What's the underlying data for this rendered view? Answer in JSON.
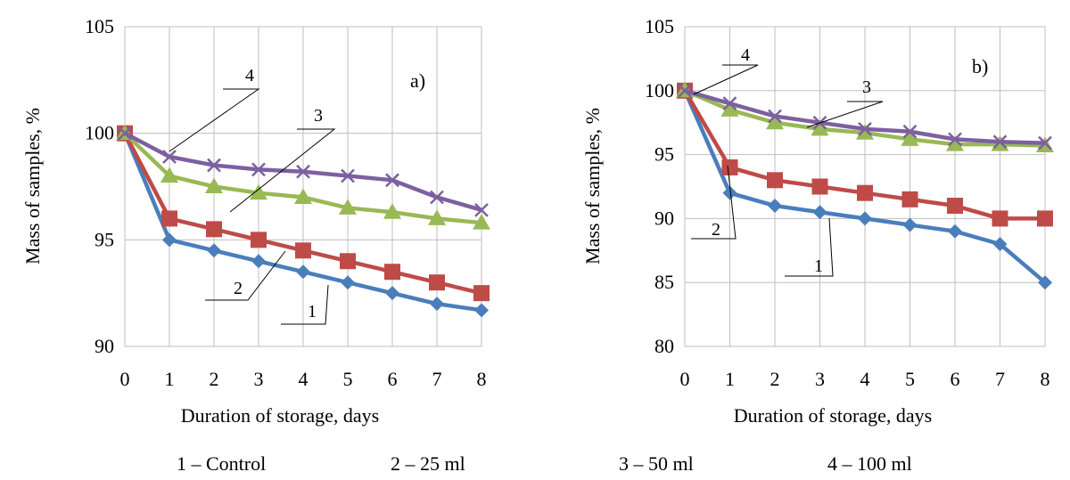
{
  "chart_data": [
    {
      "type": "line",
      "panel_label": "a)",
      "xlabel": "Duration of storage, days",
      "ylabel": "Mass of samples, %",
      "x": [
        0,
        1,
        2,
        3,
        4,
        5,
        6,
        7,
        8
      ],
      "x_ticks": [
        "0",
        "1",
        "2",
        "3",
        "4",
        "5",
        "6",
        "7",
        "8"
      ],
      "ylim": [
        90,
        105
      ],
      "y_ticks": [
        "90",
        "95",
        "100",
        "105"
      ],
      "grid": true,
      "series": [
        {
          "name": "1",
          "label": "1",
          "color": "#4a7ebb",
          "marker": "diamond",
          "values": [
            100,
            95.0,
            94.5,
            94.0,
            93.5,
            93.0,
            92.5,
            92.0,
            91.7
          ]
        },
        {
          "name": "2",
          "label": "2",
          "color": "#be4b48",
          "marker": "square",
          "values": [
            100,
            96.0,
            95.5,
            95.0,
            94.5,
            94.0,
            93.5,
            93.0,
            92.5
          ]
        },
        {
          "name": "3",
          "label": "3",
          "color": "#98b954",
          "marker": "triangle",
          "values": [
            100,
            98.0,
            97.5,
            97.2,
            97.0,
            96.5,
            96.3,
            96.0,
            95.8
          ]
        },
        {
          "name": "4",
          "label": "4",
          "color": "#7d60a0",
          "marker": "x",
          "values": [
            100,
            98.9,
            98.5,
            98.3,
            98.2,
            98.0,
            97.8,
            97.0,
            96.4
          ]
        }
      ]
    },
    {
      "type": "line",
      "panel_label": "b)",
      "xlabel": "Duration of storage, days",
      "ylabel": "Mass of samples, %",
      "x": [
        0,
        1,
        2,
        3,
        4,
        5,
        6,
        7,
        8
      ],
      "x_ticks": [
        "0",
        "1",
        "2",
        "3",
        "4",
        "5",
        "6",
        "7",
        "8"
      ],
      "ylim": [
        80,
        105
      ],
      "y_ticks": [
        "80",
        "85",
        "90",
        "95",
        "100",
        "105"
      ],
      "grid": true,
      "series": [
        {
          "name": "1",
          "label": "1",
          "color": "#4a7ebb",
          "marker": "diamond",
          "values": [
            100,
            92.0,
            91.0,
            90.5,
            90.0,
            89.5,
            89.0,
            88.0,
            85.0
          ]
        },
        {
          "name": "2",
          "label": "2",
          "color": "#be4b48",
          "marker": "square",
          "values": [
            100,
            94.0,
            93.0,
            92.5,
            92.0,
            91.5,
            91.0,
            90.0,
            90.0
          ]
        },
        {
          "name": "3",
          "label": "3",
          "color": "#98b954",
          "marker": "triangle",
          "values": [
            100,
            98.5,
            97.5,
            97.0,
            96.7,
            96.2,
            95.8,
            95.8,
            95.7
          ]
        },
        {
          "name": "4",
          "label": "4",
          "color": "#7d60a0",
          "marker": "x",
          "values": [
            100,
            99.0,
            98.0,
            97.5,
            97.0,
            96.8,
            96.2,
            96.0,
            95.9
          ]
        }
      ]
    }
  ],
  "legend": [
    "1 – Control",
    "2 – 25 ml",
    "3 – 50 ml",
    "4 – 100 ml"
  ]
}
